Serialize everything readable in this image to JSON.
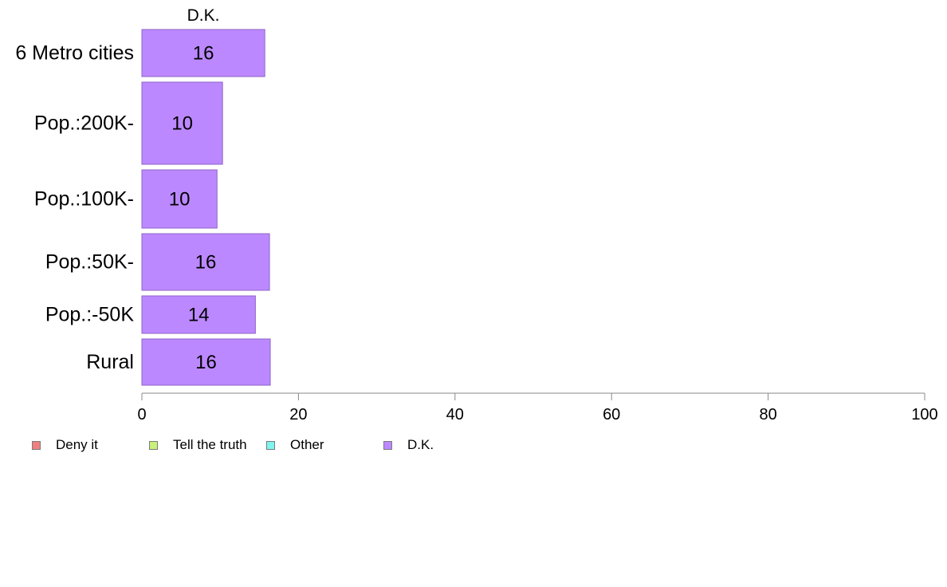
{
  "chart_data": {
    "type": "bar",
    "orientation": "horizontal",
    "stacked": true,
    "categories": [
      "6 Metro cities",
      "Pop.:200K-",
      "Pop.:100K-",
      "Pop.:50K-",
      "Pop.:-50K",
      "Rural"
    ],
    "series": [
      {
        "name": "Deny it",
        "color": "#f08080",
        "values": [
          0,
          0,
          0,
          0,
          0,
          0
        ]
      },
      {
        "name": "Tell the truth",
        "color": "#c8f07a",
        "values": [
          0,
          0,
          0,
          0,
          0,
          0
        ]
      },
      {
        "name": "Other",
        "color": "#7ff5f0",
        "values": [
          0,
          0,
          0,
          0,
          0,
          0
        ]
      },
      {
        "name": "D.K.",
        "color": "#bb88ff",
        "values": [
          15.7,
          10.3,
          9.6,
          16.3,
          14.5,
          16.4
        ]
      }
    ],
    "data_labels": [
      "16",
      "10",
      "10",
      "16",
      "14",
      "16"
    ],
    "segment_header": "D.K.",
    "xlim": [
      0,
      100
    ],
    "xticks": [
      "0",
      "20",
      "40",
      "60",
      "80",
      "100"
    ],
    "grid": false,
    "legend_position": "bottom"
  }
}
